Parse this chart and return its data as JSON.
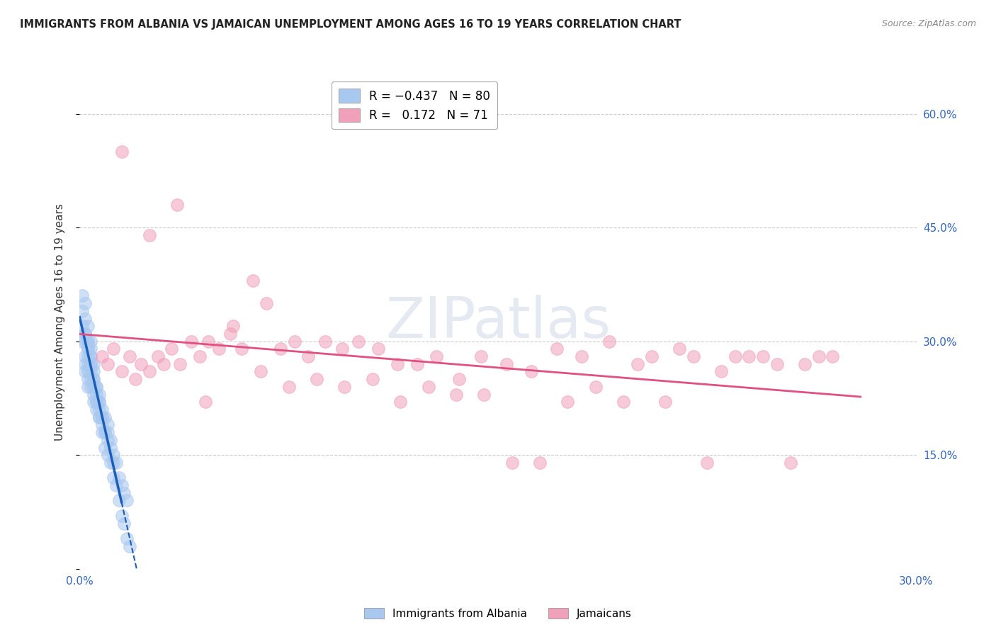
{
  "title": "IMMIGRANTS FROM ALBANIA VS JAMAICAN UNEMPLOYMENT AMONG AGES 16 TO 19 YEARS CORRELATION CHART",
  "source": "Source: ZipAtlas.com",
  "ylabel": "Unemployment Among Ages 16 to 19 years",
  "xlim": [
    0.0,
    0.3
  ],
  "ylim": [
    0.0,
    0.65
  ],
  "albania_color": "#a8c8f0",
  "jamaica_color": "#f0a0b8",
  "albania_line_color": "#1a5eb8",
  "jamaica_line_color": "#e05080",
  "albania_R": -0.437,
  "albania_N": 80,
  "jamaica_R": 0.172,
  "jamaica_N": 71,
  "albania_x": [
    0.001,
    0.001,
    0.002,
    0.002,
    0.002,
    0.002,
    0.002,
    0.003,
    0.003,
    0.003,
    0.003,
    0.003,
    0.003,
    0.003,
    0.004,
    0.004,
    0.004,
    0.004,
    0.004,
    0.004,
    0.005,
    0.005,
    0.005,
    0.005,
    0.005,
    0.006,
    0.006,
    0.006,
    0.006,
    0.007,
    0.007,
    0.007,
    0.007,
    0.008,
    0.008,
    0.008,
    0.009,
    0.009,
    0.01,
    0.01,
    0.01,
    0.011,
    0.011,
    0.012,
    0.012,
    0.013,
    0.014,
    0.015,
    0.016,
    0.017,
    0.001,
    0.001,
    0.002,
    0.002,
    0.002,
    0.003,
    0.003,
    0.003,
    0.004,
    0.004,
    0.004,
    0.005,
    0.005,
    0.006,
    0.006,
    0.007,
    0.007,
    0.008,
    0.008,
    0.009,
    0.009,
    0.01,
    0.011,
    0.012,
    0.013,
    0.014,
    0.015,
    0.016,
    0.017,
    0.018
  ],
  "albania_y": [
    0.32,
    0.3,
    0.35,
    0.28,
    0.27,
    0.31,
    0.26,
    0.3,
    0.29,
    0.28,
    0.27,
    0.26,
    0.25,
    0.24,
    0.29,
    0.28,
    0.27,
    0.26,
    0.25,
    0.24,
    0.26,
    0.25,
    0.24,
    0.23,
    0.22,
    0.24,
    0.23,
    0.22,
    0.21,
    0.23,
    0.22,
    0.21,
    0.2,
    0.21,
    0.2,
    0.19,
    0.2,
    0.18,
    0.19,
    0.18,
    0.17,
    0.17,
    0.16,
    0.15,
    0.14,
    0.14,
    0.12,
    0.11,
    0.1,
    0.09,
    0.36,
    0.34,
    0.33,
    0.31,
    0.3,
    0.32,
    0.3,
    0.29,
    0.3,
    0.28,
    0.27,
    0.27,
    0.25,
    0.24,
    0.22,
    0.22,
    0.2,
    0.2,
    0.18,
    0.18,
    0.16,
    0.15,
    0.14,
    0.12,
    0.11,
    0.09,
    0.07,
    0.06,
    0.04,
    0.03
  ],
  "jamaica_x": [
    0.008,
    0.01,
    0.012,
    0.015,
    0.018,
    0.02,
    0.022,
    0.025,
    0.028,
    0.03,
    0.033,
    0.036,
    0.04,
    0.043,
    0.046,
    0.05,
    0.054,
    0.058,
    0.062,
    0.067,
    0.072,
    0.077,
    0.082,
    0.088,
    0.094,
    0.1,
    0.107,
    0.114,
    0.121,
    0.128,
    0.136,
    0.144,
    0.153,
    0.162,
    0.171,
    0.18,
    0.19,
    0.2,
    0.21,
    0.22,
    0.23,
    0.24,
    0.25,
    0.26,
    0.27,
    0.015,
    0.025,
    0.035,
    0.045,
    0.055,
    0.065,
    0.075,
    0.085,
    0.095,
    0.105,
    0.115,
    0.125,
    0.135,
    0.145,
    0.155,
    0.165,
    0.175,
    0.185,
    0.195,
    0.205,
    0.215,
    0.225,
    0.235,
    0.245,
    0.255,
    0.265
  ],
  "jamaica_y": [
    0.28,
    0.27,
    0.29,
    0.26,
    0.28,
    0.25,
    0.27,
    0.26,
    0.28,
    0.27,
    0.29,
    0.27,
    0.3,
    0.28,
    0.3,
    0.29,
    0.31,
    0.29,
    0.38,
    0.35,
    0.29,
    0.3,
    0.28,
    0.3,
    0.29,
    0.3,
    0.29,
    0.27,
    0.27,
    0.28,
    0.25,
    0.28,
    0.27,
    0.26,
    0.29,
    0.28,
    0.3,
    0.27,
    0.22,
    0.28,
    0.26,
    0.28,
    0.27,
    0.27,
    0.28,
    0.55,
    0.44,
    0.48,
    0.22,
    0.32,
    0.26,
    0.24,
    0.25,
    0.24,
    0.25,
    0.22,
    0.24,
    0.23,
    0.23,
    0.14,
    0.14,
    0.22,
    0.24,
    0.22,
    0.28,
    0.29,
    0.14,
    0.28,
    0.28,
    0.14,
    0.28
  ]
}
